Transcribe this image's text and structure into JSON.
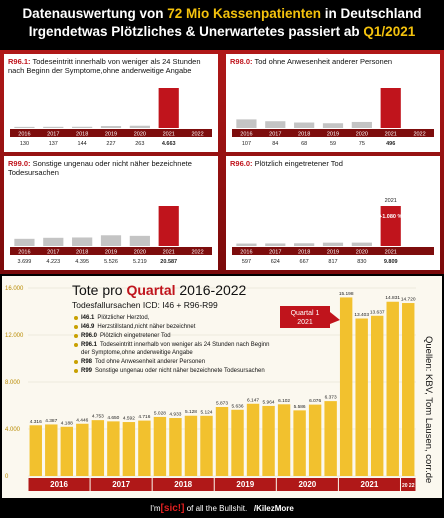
{
  "header": {
    "line1": [
      "Datenauswertung von",
      "72 Mio Kassenpatienten",
      "in Deutschland"
    ],
    "line2": [
      "Irgendetwas Plötzliches & Unerwartetes passiert ab",
      "Q1/2021"
    ]
  },
  "chart_data": [
    {
      "type": "bar",
      "code": "R96.1:",
      "title": "Todeseintritt innerhalb von weniger als 24 Stunden nach Beginn der Symptome,ohne anderweitige Angabe",
      "categories": [
        "2016",
        "2017",
        "2018",
        "2019",
        "2020",
        "2021",
        "2022"
      ],
      "values": [
        130,
        137,
        144,
        227,
        263,
        4663,
        null
      ],
      "value_labels": [
        "130",
        "137",
        "144",
        "227",
        "263",
        "4.663",
        null
      ],
      "colors": [
        "#c4c4c4",
        "#c4c4c4",
        "#c4c4c4",
        "#c4c4c4",
        "#c4c4c4",
        "#c0141c",
        "#c0141c"
      ]
    },
    {
      "type": "bar",
      "code": "R98.0:",
      "title": "Tod ohne Anwesenheit anderer Personen",
      "categories": [
        "2016",
        "2017",
        "2018",
        "2019",
        "2020",
        "2021",
        "2022"
      ],
      "values": [
        107,
        84,
        68,
        59,
        75,
        496,
        null
      ],
      "value_labels": [
        "107",
        "84",
        "68",
        "59",
        "75",
        "496",
        null
      ],
      "colors": [
        "#c4c4c4",
        "#c4c4c4",
        "#c4c4c4",
        "#c4c4c4",
        "#c4c4c4",
        "#c0141c",
        "#c0141c"
      ]
    },
    {
      "type": "bar",
      "code": "R99.0:",
      "title": "Sonstige ungenau oder nicht näher bezeichnete Todesursachen",
      "categories": [
        "2016",
        "2017",
        "2018",
        "2019",
        "2020",
        "2021",
        "2022"
      ],
      "values": [
        3699,
        4223,
        4395,
        5526,
        5219,
        20587,
        null
      ],
      "value_labels": [
        "3.699",
        "4.223",
        "4.395",
        "5.526",
        "5.219",
        "20.587",
        null
      ],
      "colors": [
        "#c4c4c4",
        "#c4c4c4",
        "#c4c4c4",
        "#c4c4c4",
        "#c4c4c4",
        "#c0141c",
        "#c0141c"
      ]
    },
    {
      "type": "bar",
      "code": "R96.0:",
      "title": "Plötzlich eingetretener Tod",
      "categories": [
        "2016",
        "2017",
        "2018",
        "2019",
        "2020",
        "2021"
      ],
      "values": [
        597,
        624,
        667,
        817,
        830,
        9809
      ],
      "value_labels": [
        "597",
        "624",
        "667",
        "817",
        "830",
        "9.809"
      ],
      "annotation": "+1.080 %",
      "colors": [
        "#c4c4c4",
        "#c4c4c4",
        "#c4c4c4",
        "#c4c4c4",
        "#c4c4c4",
        "#c0141c"
      ]
    },
    {
      "type": "quarterly",
      "title": [
        "Tote pro",
        "Quartal",
        "2016-2022"
      ],
      "subtitle": "Todesfallursachen ICD: I46 + R96-R99",
      "legend": [
        {
          "code": "I46.1",
          "text": "Plötzlicher Herztod,"
        },
        {
          "code": "I46.9",
          "text": "Herzstillstand,nicht näher bezeichnet"
        },
        {
          "code": "R96.0",
          "text": "Plötzlich eingetretener Tod"
        },
        {
          "code": "R96.1",
          "text": "Todeseintritt innerhalb von weniger als 24 Stunden nach Beginn der Symptome,ohne anderweitige Angabe"
        },
        {
          "code": "R98",
          "text": "Tod ohne Anwesenheit anderer Personen"
        },
        {
          "code": "R99",
          "text": "Sonstige ungenau oder nicht näher bezeichnete Todesursachen"
        }
      ],
      "annotation": [
        "Quartal 1",
        "2021"
      ],
      "source": "Quellen: KBV, Tom Lausen, corr.de",
      "groups": [
        "2016",
        "2017",
        "2018",
        "2019",
        "2020",
        "2021",
        "20 22"
      ],
      "values": [
        4316,
        4387,
        4188,
        4446,
        4753,
        4650,
        4592,
        4716,
        5028,
        4933,
        5128,
        5124,
        5873,
        5636,
        6147,
        5964,
        6102,
        5586,
        6076,
        6373,
        15198,
        13403,
        13637,
        14831,
        14720
      ],
      "value_labels": [
        "4.316",
        "4.387",
        "4.188",
        "4.446",
        "4.753",
        "4.650",
        "4.592",
        "4.716",
        "5.028",
        "4.933",
        "5.128",
        "5.124",
        "5.873",
        "5.636",
        "6.147",
        "5.964",
        "6.102",
        "5.586",
        "6.076",
        "6.373",
        "15.198",
        "13.403",
        "13.637",
        "14.831",
        "14.720"
      ],
      "color": "#f2c12e",
      "ylim": [
        0,
        16000
      ],
      "yticks": [
        0,
        {
          "value": 4000,
          "label": "4.000"
        },
        {
          "value": 8000,
          "label": "8.000"
        },
        {
          "value": 12000,
          "label": "12.000"
        },
        {
          "value": 16000,
          "label": "16.000"
        }
      ],
      "grid": true
    }
  ],
  "footer": {
    "pre": "I'm",
    "sic": "[sic!]",
    "post": "of all the Bullshit.",
    "handle": "/KilezMore"
  }
}
